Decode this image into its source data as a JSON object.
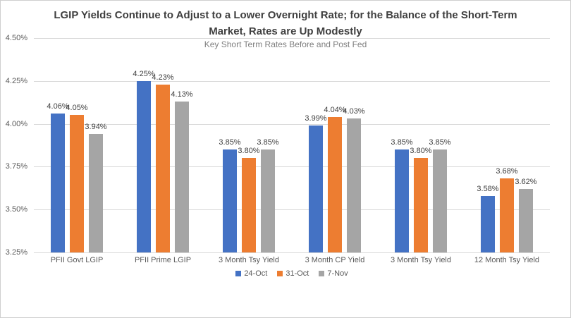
{
  "chart_data": {
    "type": "bar",
    "title": "LGIP Yields Continue to Adjust to a Lower Overnight Rate; for the Balance of the Short-Term Market, Rates are Up Modestly",
    "subtitle": "Key Short Term Rates Before and Post Fed",
    "categories": [
      "PFII Govt LGIP",
      "PFII Prime LGIP",
      "3 Month Tsy Yield",
      "3 Month CP Yield",
      "3 Month Tsy Yield",
      "12 Month Tsy Yield"
    ],
    "series": [
      {
        "name": "24-Oct",
        "color": "#4472C4",
        "values": [
          4.06,
          4.25,
          3.85,
          3.99,
          3.85,
          3.58
        ]
      },
      {
        "name": "31-Oct",
        "color": "#ED7D31",
        "values": [
          4.05,
          4.23,
          3.8,
          4.04,
          3.8,
          3.68
        ]
      },
      {
        "name": "7-Nov",
        "color": "#A5A5A5",
        "values": [
          3.94,
          4.13,
          3.85,
          4.03,
          3.85,
          3.62
        ]
      }
    ],
    "y_ticks": [
      "4.50%",
      "4.25%",
      "4.00%",
      "3.75%",
      "3.50%",
      "3.25%"
    ],
    "ylim": [
      3.25,
      4.5
    ],
    "value_suffix": "%",
    "value_decimals": 2,
    "grid": true,
    "legend_position": "bottom",
    "colors": {
      "grid": "#D9D9D9",
      "axis_text": "#595959",
      "data_label": "#404040",
      "title": "#3F3F3F",
      "subtitle": "#7F7F7F"
    }
  }
}
